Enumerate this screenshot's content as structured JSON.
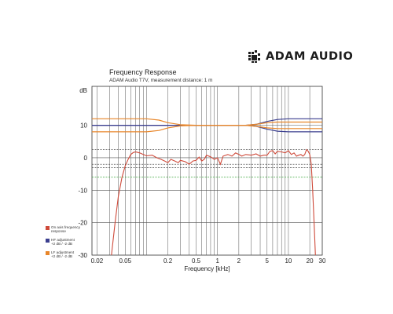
{
  "brand": {
    "name": "ADAM AUDIO",
    "logo_icon": "adam-audio-logo-icon"
  },
  "chart_data": {
    "type": "line",
    "title": "Frequency Response",
    "subtitle": "ADAM Audio T7V, measurement distance: 1 m",
    "xlabel": "Frequency [kHz]",
    "ylabel": "dB",
    "x_scale": "log",
    "xlim": [
      0.017,
      30
    ],
    "ylim": [
      -30,
      22
    ],
    "x_ticks": [
      {
        "value": 0.02,
        "label": "0.02"
      },
      {
        "value": 0.05,
        "label": "0.05"
      },
      {
        "value": 0.2,
        "label": "0.2"
      },
      {
        "value": 0.5,
        "label": "0.5"
      },
      {
        "value": 1,
        "label": "1"
      },
      {
        "value": 2,
        "label": "2"
      },
      {
        "value": 5,
        "label": "5"
      },
      {
        "value": 10,
        "label": "10"
      },
      {
        "value": 20,
        "label": "20"
      },
      {
        "value": 30,
        "label": "30"
      }
    ],
    "y_ticks": [
      {
        "value": 10,
        "label": "10"
      },
      {
        "value": 0,
        "label": "0"
      },
      {
        "value": -10,
        "label": "-10"
      },
      {
        "value": -20,
        "label": "-20"
      },
      {
        "value": -30,
        "label": "-30"
      }
    ],
    "grid": true,
    "reference_lines": [
      {
        "y": 2.5,
        "color": "#555555",
        "style": "dashed"
      },
      {
        "y": -2,
        "color": "#555555",
        "style": "dashed"
      },
      {
        "y": -3,
        "color": "#555555",
        "style": "dashed"
      },
      {
        "y": -6,
        "color": "#3aa63a",
        "style": "dashed"
      }
    ],
    "series": [
      {
        "name": "On axis frequency response",
        "color": "#cf4a3a",
        "points": [
          [
            0.032,
            -30
          ],
          [
            0.036,
            -20
          ],
          [
            0.04,
            -12
          ],
          [
            0.045,
            -6
          ],
          [
            0.05,
            -2.5
          ],
          [
            0.055,
            -0.5
          ],
          [
            0.06,
            1
          ],
          [
            0.065,
            1.6
          ],
          [
            0.07,
            1.8
          ],
          [
            0.08,
            1.5
          ],
          [
            0.09,
            1
          ],
          [
            0.1,
            0.6
          ],
          [
            0.12,
            0.8
          ],
          [
            0.14,
            0
          ],
          [
            0.16,
            -0.5
          ],
          [
            0.18,
            -1
          ],
          [
            0.2,
            -1.5
          ],
          [
            0.22,
            -0.5
          ],
          [
            0.25,
            -1
          ],
          [
            0.28,
            -1.5
          ],
          [
            0.3,
            -0.8
          ],
          [
            0.35,
            -1.2
          ],
          [
            0.4,
            -2
          ],
          [
            0.45,
            -1
          ],
          [
            0.5,
            -0.8
          ],
          [
            0.55,
            0.2
          ],
          [
            0.6,
            -1
          ],
          [
            0.65,
            -0.5
          ],
          [
            0.7,
            0.8
          ],
          [
            0.8,
            0.3
          ],
          [
            0.9,
            -0.5
          ],
          [
            1,
            0
          ],
          [
            1.1,
            -2
          ],
          [
            1.2,
            0.5
          ],
          [
            1.4,
            1
          ],
          [
            1.6,
            0.5
          ],
          [
            1.8,
            1.5
          ],
          [
            2,
            1
          ],
          [
            2.2,
            0.5
          ],
          [
            2.5,
            1
          ],
          [
            3,
            0.8
          ],
          [
            3.5,
            1.2
          ],
          [
            4,
            0.5
          ],
          [
            4.5,
            0.8
          ],
          [
            5,
            0.8
          ],
          [
            5.5,
            2
          ],
          [
            6,
            2.2
          ],
          [
            6.5,
            1.2
          ],
          [
            7,
            2
          ],
          [
            8,
            1.8
          ],
          [
            9,
            1.5
          ],
          [
            10,
            2.2
          ],
          [
            11,
            1
          ],
          [
            12,
            1.5
          ],
          [
            13,
            0.5
          ],
          [
            14,
            0.8
          ],
          [
            15,
            1
          ],
          [
            16,
            0.5
          ],
          [
            17,
            1
          ],
          [
            18,
            2.5
          ],
          [
            19,
            2
          ],
          [
            20,
            1
          ],
          [
            21,
            -2
          ],
          [
            22,
            -10
          ],
          [
            23,
            -20
          ],
          [
            24,
            -30
          ]
        ]
      },
      {
        "name": "HF adjustment +2 dB / -2 dB",
        "color": "#3b3f8f",
        "curves": [
          [
            [
              0.017,
              10
            ],
            [
              2.5,
              10
            ],
            [
              3.5,
              10.3
            ],
            [
              5,
              11.2
            ],
            [
              7,
              11.8
            ],
            [
              10,
              12
            ],
            [
              30,
              12
            ]
          ],
          [
            [
              0.017,
              10
            ],
            [
              2.5,
              10
            ],
            [
              3.5,
              9.7
            ],
            [
              5,
              8.8
            ],
            [
              7,
              8.2
            ],
            [
              10,
              8
            ],
            [
              30,
              8
            ]
          ]
        ]
      },
      {
        "name": "LF adjustment +2 dB / -2 dB",
        "color": "#e8862a",
        "curves": [
          [
            [
              0.017,
              12
            ],
            [
              0.1,
              12
            ],
            [
              0.15,
              11.6
            ],
            [
              0.2,
              10.8
            ],
            [
              0.3,
              10.2
            ],
            [
              0.5,
              10
            ],
            [
              2.5,
              10
            ],
            [
              3.5,
              10.3
            ],
            [
              5,
              10.8
            ],
            [
              7,
              11
            ],
            [
              10,
              11
            ],
            [
              30,
              11
            ]
          ],
          [
            [
              0.017,
              8
            ],
            [
              0.1,
              8
            ],
            [
              0.15,
              8.4
            ],
            [
              0.2,
              9.2
            ],
            [
              0.3,
              9.8
            ],
            [
              0.5,
              10
            ],
            [
              2.5,
              10
            ],
            [
              3.5,
              9.7
            ],
            [
              5,
              9.2
            ],
            [
              7,
              9
            ],
            [
              10,
              9
            ],
            [
              30,
              9
            ]
          ]
        ]
      }
    ],
    "legend": {
      "placement": "left",
      "entries": [
        {
          "lines": [
            "On axis frequency",
            "response"
          ],
          "color": "#cf4a3a"
        },
        {
          "lines": [
            "HF adjustment",
            "+2 dB / -2 dB"
          ],
          "color": "#3b3f8f"
        },
        {
          "lines": [
            "LF adjustment",
            "+2 dB / -2 dB"
          ],
          "color": "#e8862a"
        }
      ]
    }
  }
}
